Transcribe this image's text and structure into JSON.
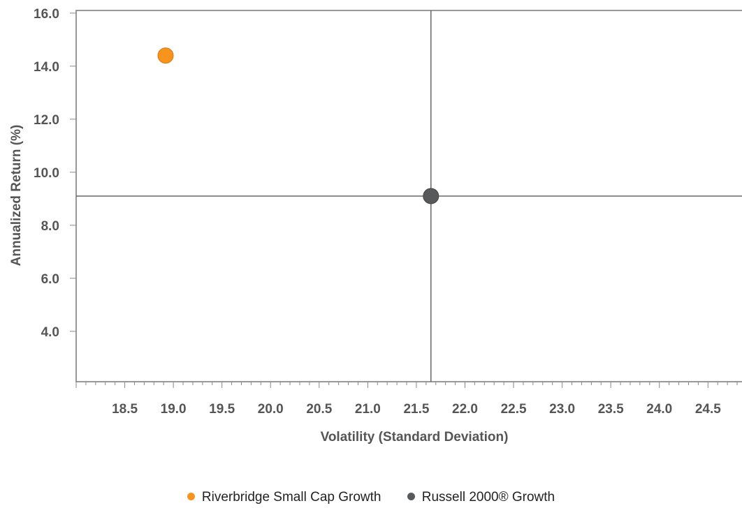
{
  "chart_data": {
    "type": "scatter",
    "xlabel": "Volatility (Standard Deviation)",
    "ylabel": "Annualized Return (%)",
    "xlim": [
      18.0,
      24.85
    ],
    "ylim": [
      2.1,
      16.1
    ],
    "x_ticks": [
      "18.5",
      "19.0",
      "19.5",
      "20.0",
      "20.5",
      "21.0",
      "21.5",
      "22.0",
      "22.5",
      "23.0",
      "23.5",
      "24.0",
      "24.5"
    ],
    "y_ticks": [
      "4.0",
      "6.0",
      "8.0",
      "10.0",
      "12.0",
      "14.0",
      "16.0"
    ],
    "reference_lines": {
      "x": 21.65,
      "y": 9.1
    },
    "series": [
      {
        "name": "Riverbridge Small Cap Growth",
        "x": 18.92,
        "y": 14.4,
        "color": "#f7941d"
      },
      {
        "name": "Russell 2000® Growth",
        "x": 21.65,
        "y": 9.1,
        "color": "#58595b"
      }
    ],
    "legend_position": "bottom-center"
  }
}
